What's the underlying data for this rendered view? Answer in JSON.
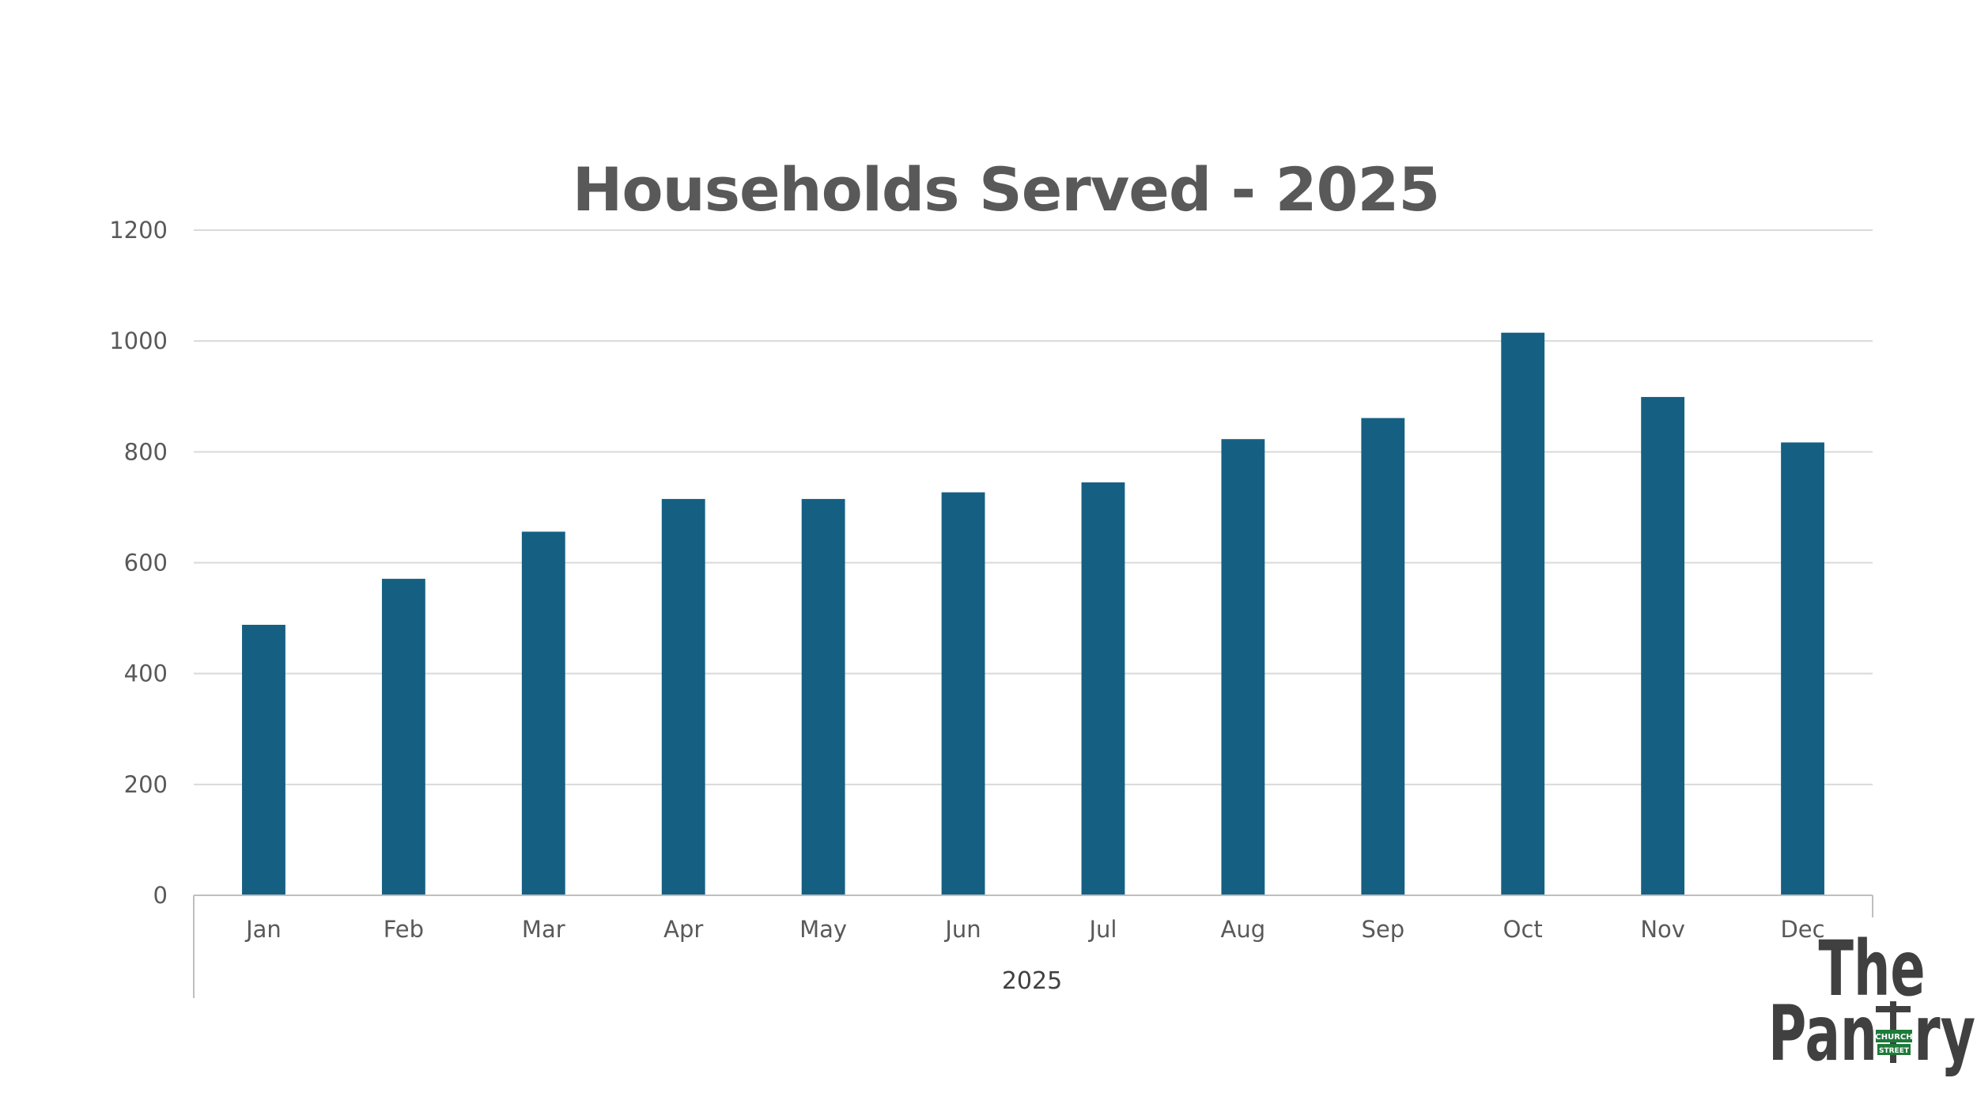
{
  "chart_data": {
    "type": "bar",
    "title": "Households Served - 2025",
    "categories": [
      "Jan",
      "Feb",
      "Mar",
      "Apr",
      "May",
      "Jun",
      "Jul",
      "Aug",
      "Sep",
      "Oct",
      "Nov",
      "Dec"
    ],
    "category_group": "2025",
    "series": [
      {
        "values": [
          488,
          571,
          656,
          715,
          715,
          727,
          745,
          823,
          861,
          1015,
          899,
          817
        ],
        "color": "#156082"
      }
    ],
    "ylim": [
      0,
      1200
    ],
    "yticks": [
      0,
      200,
      400,
      600,
      800,
      1000,
      1200
    ],
    "grid": true,
    "legend": "none"
  },
  "logo": {
    "line1": "The",
    "line2_left": "Pan",
    "line2_right": "ry",
    "sign_top": "CHURCH",
    "sign_bottom": "STREET",
    "sign_color": "#1e7a3a",
    "text_color": "#404040"
  }
}
